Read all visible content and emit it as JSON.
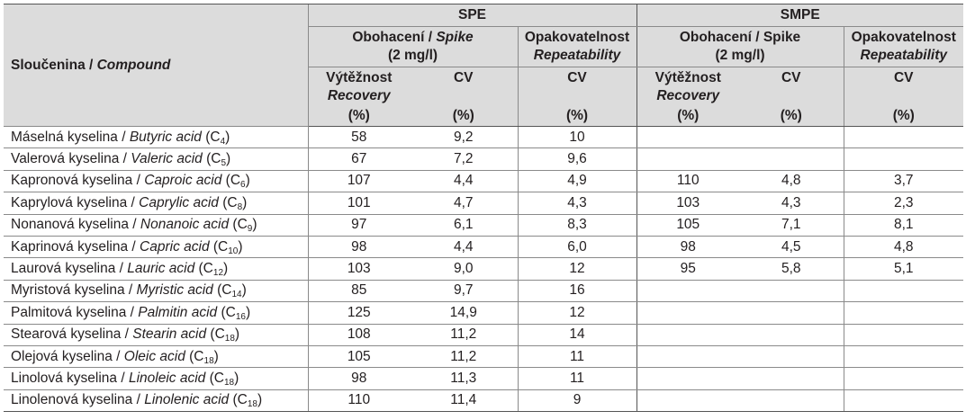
{
  "header": {
    "compound": "Sloučenina",
    "compound_sep": " / ",
    "compound_en": "Compound",
    "spe": "SPE",
    "smpe": "SMPE",
    "spike_cz": "Obohacení / ",
    "spike_en": "Spike",
    "spike_conc": "(2 mg/l)",
    "spike_cz_smpe": "Obohacení / Spike",
    "spike_conc_smpe": "(2 mg/l)",
    "repeat_cz": "Opakovatelnost",
    "repeat_en": "Repeatability",
    "recovery_cz": "Výtěžnost",
    "recovery_en": "Recovery",
    "pct": "(%)",
    "cv": "CV"
  },
  "rows": [
    {
      "cz": "Máselná kyselina / ",
      "en": "Butyric acid",
      "c_open": " (C",
      "c_n": "4",
      "c_close": ")",
      "spe_rec": "58",
      "spe_cv": "9,2",
      "spe_rep": "10",
      "smpe_rec": "",
      "smpe_cv": "",
      "smpe_rep": ""
    },
    {
      "cz": "Valerová kyselina / ",
      "en": "Valeric acid",
      "c_open": " (C",
      "c_n": "5",
      "c_close": ")",
      "spe_rec": "67",
      "spe_cv": "7,2",
      "spe_rep": "9,6",
      "smpe_rec": "",
      "smpe_cv": "",
      "smpe_rep": ""
    },
    {
      "cz": "Kapronová kyselina / ",
      "en": "Caproic acid",
      "c_open": " (C",
      "c_n": "6",
      "c_close": ")",
      "spe_rec": "107",
      "spe_cv": "4,4",
      "spe_rep": "4,9",
      "smpe_rec": "110",
      "smpe_cv": "4,8",
      "smpe_rep": "3,7"
    },
    {
      "cz": "Kaprylová kyselina / ",
      "en": "Caprylic acid",
      "c_open": " (C",
      "c_n": "8",
      "c_close": ")",
      "spe_rec": "101",
      "spe_cv": "4,7",
      "spe_rep": "4,3",
      "smpe_rec": "103",
      "smpe_cv": "4,3",
      "smpe_rep": "2,3"
    },
    {
      "cz": "Nonanová kyselina / ",
      "en": "Nonanoic acid",
      "c_open": " (C",
      "c_n": "9",
      "c_close": ")",
      "spe_rec": "97",
      "spe_cv": "6,1",
      "spe_rep": "8,3",
      "smpe_rec": "105",
      "smpe_cv": "7,1",
      "smpe_rep": "8,1"
    },
    {
      "cz": "Kaprinová kyselina / ",
      "en": "Capric acid",
      "c_open": " (C",
      "c_n": "10",
      "c_close": ")",
      "spe_rec": "98",
      "spe_cv": "4,4",
      "spe_rep": "6,0",
      "smpe_rec": "98",
      "smpe_cv": "4,5",
      "smpe_rep": "4,8"
    },
    {
      "cz": "Laurová kyselina / ",
      "en": "Lauric acid",
      "c_open": " (C",
      "c_n": "12",
      "c_close": ")",
      "spe_rec": "103",
      "spe_cv": "9,0",
      "spe_rep": "12",
      "smpe_rec": "95",
      "smpe_cv": "5,8",
      "smpe_rep": "5,1"
    },
    {
      "cz": "Myristová kyselina / ",
      "en": "Myristic acid",
      "c_open": " (C",
      "c_n": "14",
      "c_close": ")",
      "spe_rec": "85",
      "spe_cv": "9,7",
      "spe_rep": "16",
      "smpe_rec": "",
      "smpe_cv": "",
      "smpe_rep": ""
    },
    {
      "cz": "Palmitová kyselina / ",
      "en": "Palmitin acid",
      "c_open": " (C",
      "c_n": "16",
      "c_close": ")",
      "spe_rec": "125",
      "spe_cv": "14,9",
      "spe_rep": "12",
      "smpe_rec": "",
      "smpe_cv": "",
      "smpe_rep": ""
    },
    {
      "cz": "Stearová kyselina / ",
      "en": "Stearin acid",
      "c_open": " (C",
      "c_n": "18",
      "c_close": ")",
      "spe_rec": "108",
      "spe_cv": "11,2",
      "spe_rep": "14",
      "smpe_rec": "",
      "smpe_cv": "",
      "smpe_rep": ""
    },
    {
      "cz": "Olejová kyselina / ",
      "en": "Oleic acid",
      "c_open": " (C",
      "c_n": "18",
      "c_close": ")",
      "spe_rec": "105",
      "spe_cv": "11,2",
      "spe_rep": "11",
      "smpe_rec": "",
      "smpe_cv": "",
      "smpe_rep": ""
    },
    {
      "cz": "Linolová kyselina / ",
      "en": "Linoleic acid",
      "c_open": " (C",
      "c_n": "18",
      "c_close": ")",
      "spe_rec": "98",
      "spe_cv": "11,3",
      "spe_rep": "11",
      "smpe_rec": "",
      "smpe_cv": "",
      "smpe_rep": ""
    },
    {
      "cz": "Linolenová kyselina / ",
      "en": "Linolenic acid",
      "c_open": " (C",
      "c_n": "18",
      "c_close": ")",
      "spe_rec": "110",
      "spe_cv": "11,4",
      "spe_rep": "9",
      "smpe_rec": "",
      "smpe_cv": "",
      "smpe_rep": ""
    }
  ]
}
